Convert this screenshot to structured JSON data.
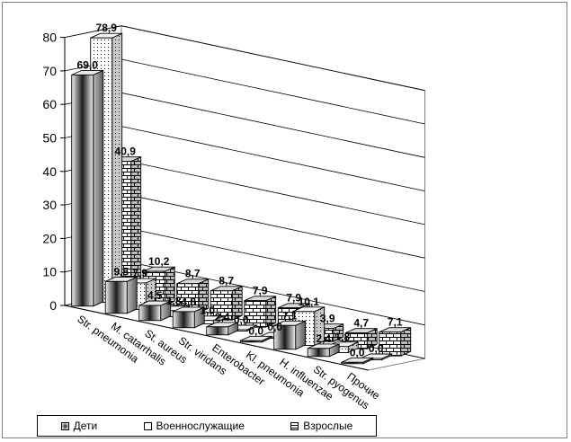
{
  "chart_data": {
    "type": "bar",
    "categories": [
      "Str. pneumonia",
      "M. catarrhalis",
      "St. aureus",
      "Str. viridans",
      "Enterobacter",
      "Kl. pneumonia",
      "H. influenzae",
      "Str. pyogenus",
      "Прочие"
    ],
    "series": [
      {
        "name": "Дети",
        "values": [
          69.0,
          9.5,
          4.5,
          4.8,
          2.4,
          0.0,
          7.1,
          2.4,
          0.0
        ],
        "labels": [
          "69,0",
          "9,5",
          "4,5",
          "4,8",
          "2,4",
          "0,0",
          "7,1",
          "2,4",
          "0,0"
        ]
      },
      {
        "name": "Военнослужащие",
        "values": [
          78.9,
          7.9,
          1.8,
          1.0,
          0.0,
          0.0,
          10.1,
          1.8,
          0.0
        ],
        "labels": [
          "78,9",
          "7,9",
          "1,8",
          "1,0",
          "0,0",
          "0,0",
          "10,1",
          "1,8",
          "0,0"
        ]
      },
      {
        "name": "Взрослые",
        "values": [
          40.9,
          10.2,
          8.7,
          8.7,
          7.9,
          7.9,
          3.9,
          4.7,
          7.1
        ],
        "labels": [
          "40,9",
          "10,2",
          "8,7",
          "8,7",
          "7,9",
          "7,9",
          "3,9",
          "4,7",
          "7,1"
        ]
      }
    ],
    "y_ticks": [
      "0",
      "10",
      "20",
      "30",
      "40",
      "50",
      "60",
      "70",
      "80"
    ],
    "ylim": [
      0,
      80
    ],
    "title": "",
    "xlabel": "",
    "ylabel": "",
    "legend_position": "bottom-left",
    "grid": true,
    "projection": "3d-bars"
  }
}
